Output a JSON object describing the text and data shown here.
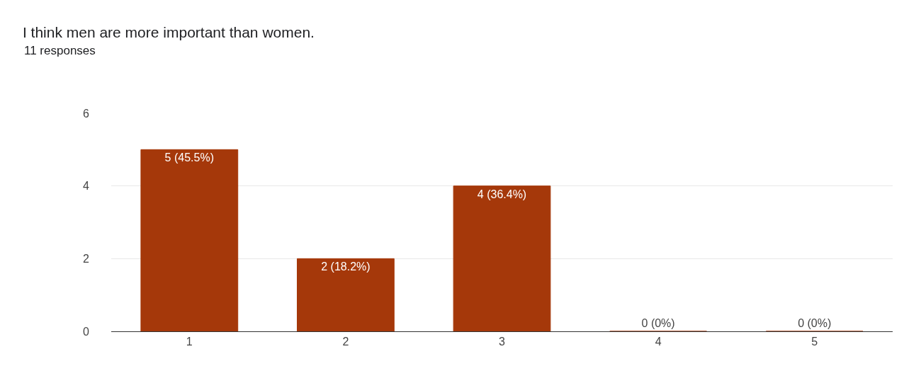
{
  "chart_data": {
    "type": "bar",
    "title": "I think men are more important than women.",
    "subtitle": "11 responses",
    "categories": [
      "1",
      "2",
      "3",
      "4",
      "5"
    ],
    "values": [
      5,
      2,
      4,
      0,
      0
    ],
    "value_labels": [
      "5 (45.5%)",
      "2 (18.2%)",
      "4 (36.4%)",
      "0 (0%)",
      "0 (0%)"
    ],
    "color": "#a5380a",
    "ylim": [
      0,
      6
    ],
    "yticks": [
      0,
      2,
      4,
      6
    ],
    "grid": "y"
  }
}
